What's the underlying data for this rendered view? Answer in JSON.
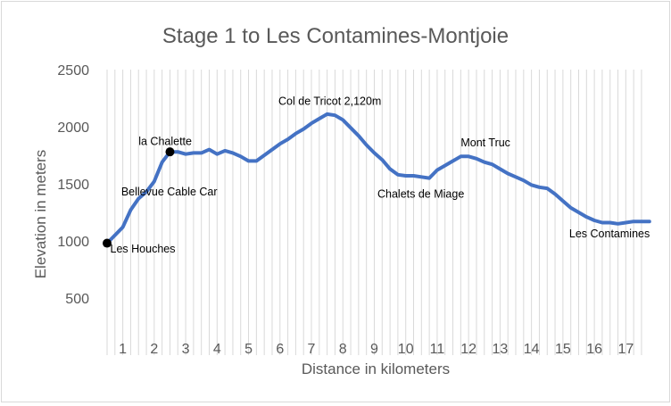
{
  "chart_data": {
    "type": "line",
    "title": "Stage 1 to Les Contamines-Montjoie",
    "xlabel": "Distance in kilometers",
    "ylabel": "Elevation in meters",
    "ylim": [
      0,
      2500
    ],
    "xlim": [
      0,
      17.2
    ],
    "yticks": [
      "500",
      "1000",
      "1500",
      "2000",
      "2500"
    ],
    "xticks": [
      "1",
      "2",
      "3",
      "4",
      "5",
      "6",
      "7",
      "8",
      "9",
      "10",
      "11",
      "12",
      "13",
      "14",
      "15",
      "16",
      "17"
    ],
    "grid": "vertical",
    "series": [
      {
        "color": "#4472c4",
        "x": [
          0.0,
          0.25,
          0.5,
          0.75,
          1.0,
          1.25,
          1.5,
          1.75,
          2.0,
          2.25,
          2.5,
          2.75,
          3.0,
          3.25,
          3.5,
          3.75,
          4.0,
          4.25,
          4.5,
          4.75,
          5.0,
          5.25,
          5.5,
          5.75,
          6.0,
          6.25,
          6.5,
          6.75,
          7.0,
          7.25,
          7.5,
          7.75,
          8.0,
          8.25,
          8.5,
          8.75,
          9.0,
          9.25,
          9.5,
          9.75,
          10.0,
          10.25,
          10.5,
          10.75,
          11.0,
          11.25,
          11.5,
          11.75,
          12.0,
          12.25,
          12.5,
          12.75,
          13.0,
          13.25,
          13.5,
          13.75,
          14.0,
          14.25,
          14.5,
          14.75,
          15.0,
          15.25,
          15.5,
          15.75,
          16.0,
          16.25,
          16.5,
          16.75,
          17.0,
          17.25
        ],
        "y": [
          980,
          1050,
          1120,
          1270,
          1370,
          1430,
          1520,
          1690,
          1780,
          1780,
          1760,
          1770,
          1770,
          1800,
          1760,
          1790,
          1770,
          1740,
          1700,
          1700,
          1750,
          1800,
          1850,
          1890,
          1940,
          1980,
          2030,
          2070,
          2110,
          2100,
          2060,
          1990,
          1920,
          1840,
          1770,
          1710,
          1630,
          1580,
          1570,
          1570,
          1560,
          1550,
          1620,
          1660,
          1700,
          1740,
          1740,
          1720,
          1690,
          1670,
          1630,
          1590,
          1560,
          1530,
          1490,
          1470,
          1460,
          1410,
          1350,
          1290,
          1250,
          1210,
          1180,
          1160,
          1160,
          1150,
          1160,
          1170,
          1170,
          1170
        ]
      }
    ],
    "markers": [
      {
        "x": 0.0,
        "y": 980
      },
      {
        "x": 2.0,
        "y": 1780
      }
    ],
    "annotations": [
      {
        "text": "Les Houches",
        "x": 0.1,
        "y": 900
      },
      {
        "text": "la Chalette",
        "x": 1.0,
        "y": 1840
      },
      {
        "text": "Bellevue Cable Car",
        "x": 0.45,
        "y": 1400
      },
      {
        "text": "Col de Tricot 2,120m",
        "x": 5.45,
        "y": 2190
      },
      {
        "text": "Chalets de Miage",
        "x": 8.6,
        "y": 1380
      },
      {
        "text": "Mont Truc",
        "x": 11.25,
        "y": 1830
      },
      {
        "text": "Les Contamines",
        "x": 14.7,
        "y": 1030
      }
    ]
  }
}
